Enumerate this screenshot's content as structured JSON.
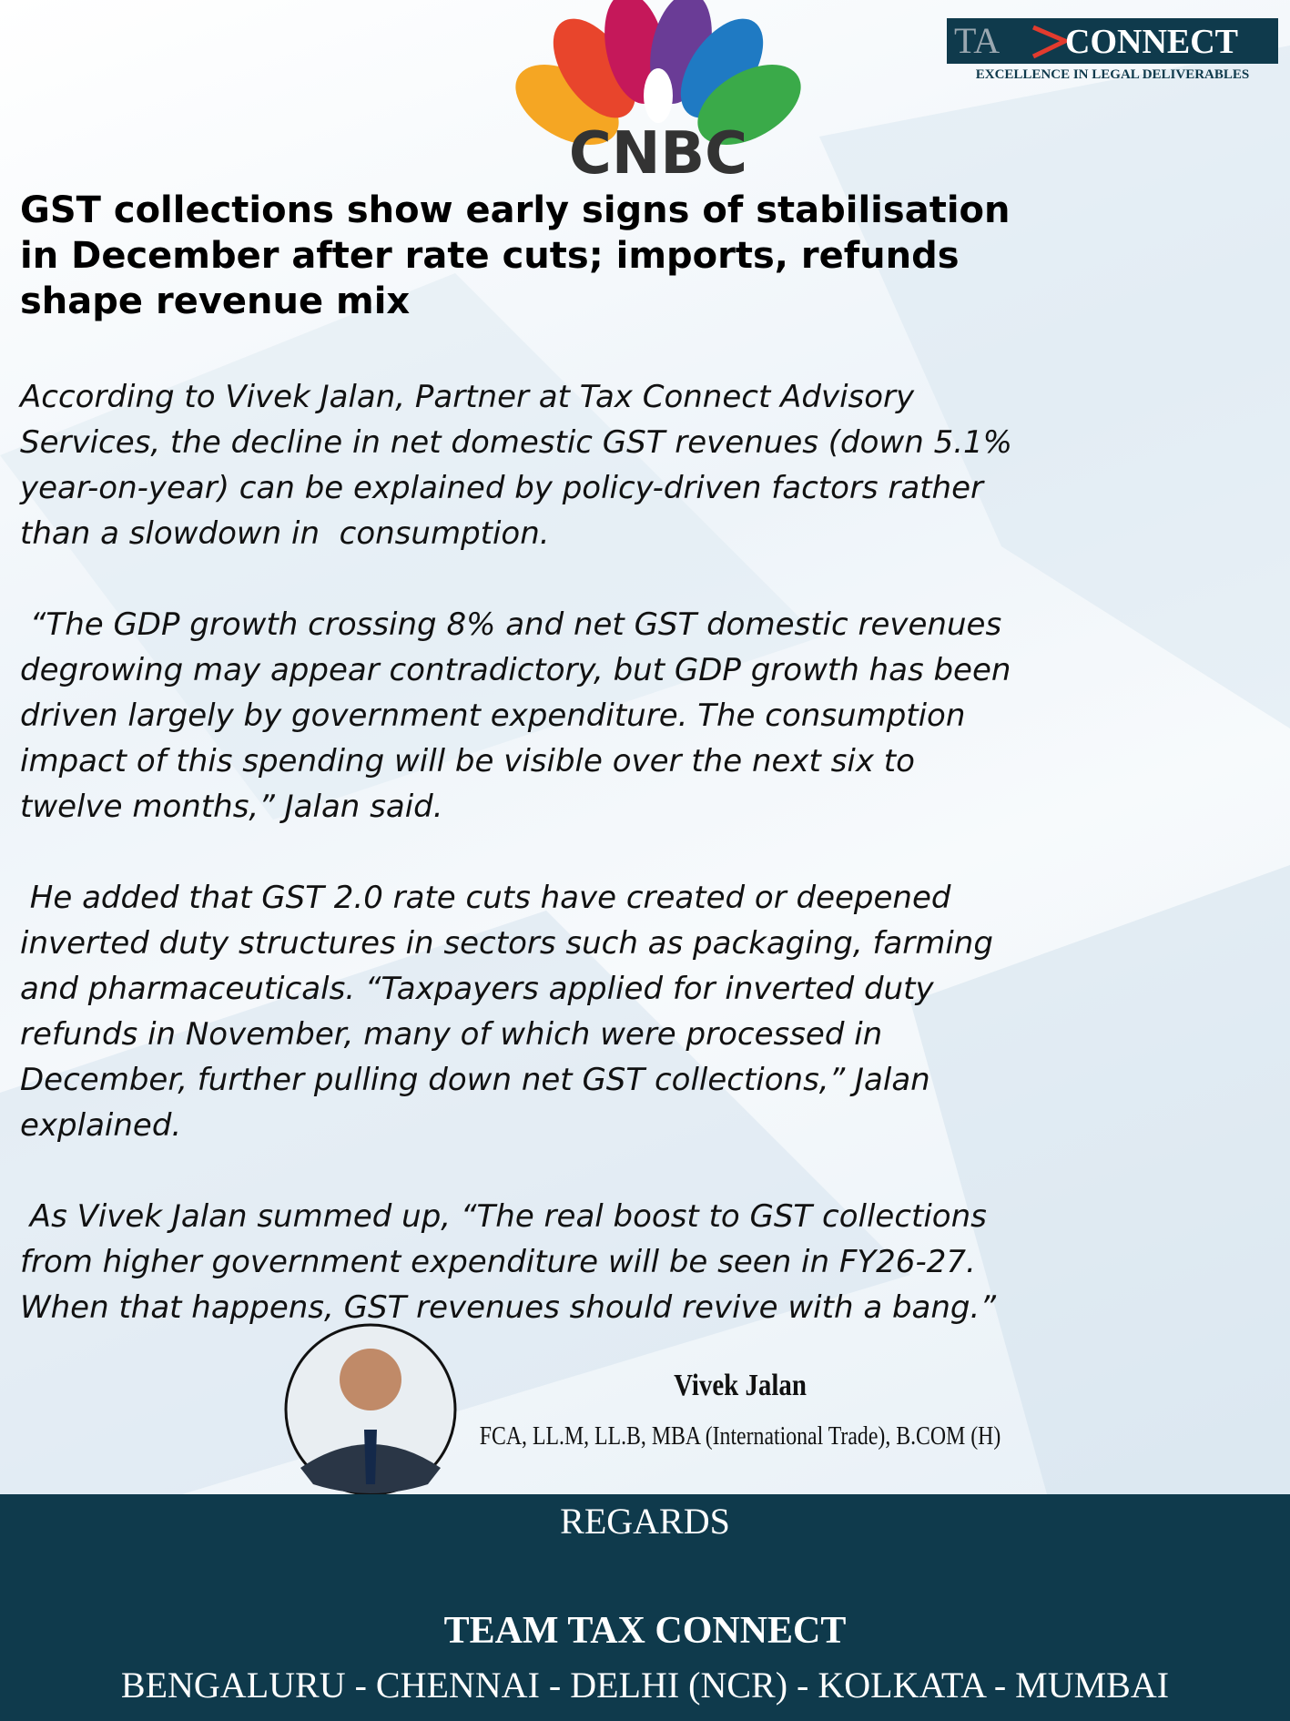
{
  "header": {
    "logo": "CNBC",
    "brand_left": "TA",
    "brand_right": "CONNECT",
    "tagline": "EXCELLENCE IN LEGAL DELIVERABLES"
  },
  "headline": [
    "GST collections show early signs of stabilisation",
    "in December after rate cuts; imports, refunds",
    "shape revenue mix"
  ],
  "paragraphs": [
    [
      "According to Vivek Jalan, Partner at Tax Connect Advisory",
      "Services, the decline in net domestic GST revenues (down 5.1%",
      "year-on-year) can be explained by policy-driven factors rather",
      "than a slowdown in  consumption."
    ],
    [
      " “The GDP growth crossing 8% and net GST domestic revenues",
      "degrowing may appear contradictory, but GDP growth has been",
      "driven largely by government expenditure. The consumption",
      "impact of this spending will be visible over the next six to",
      "twelve months,” Jalan said."
    ],
    [
      " He added that GST 2.0 rate cuts have created or deepened",
      "inverted duty structures in sectors such as packaging, farming",
      "and pharmaceuticals. “Taxpayers applied for inverted duty",
      "refunds in November, many of which were processed in",
      "December, further pulling down net GST collections,” Jalan",
      "explained."
    ],
    [
      " As Vivek Jalan summed up, “The real boost to GST collections",
      "from higher government expenditure will be seen in FY26-27.",
      "When that happens, GST revenues should revive with a bang.”"
    ]
  ],
  "signature": {
    "name": "Vivek Jalan",
    "credentials": "FCA, LL.M, LL.B, MBA (International Trade), B.COM (H)"
  },
  "footer": {
    "regards": "REGARDS",
    "team": "TEAM TAX CONNECT",
    "cities": "BENGALURU - CHENNAI - DELHI (NCR) - KOLKATA - MUMBAI"
  }
}
